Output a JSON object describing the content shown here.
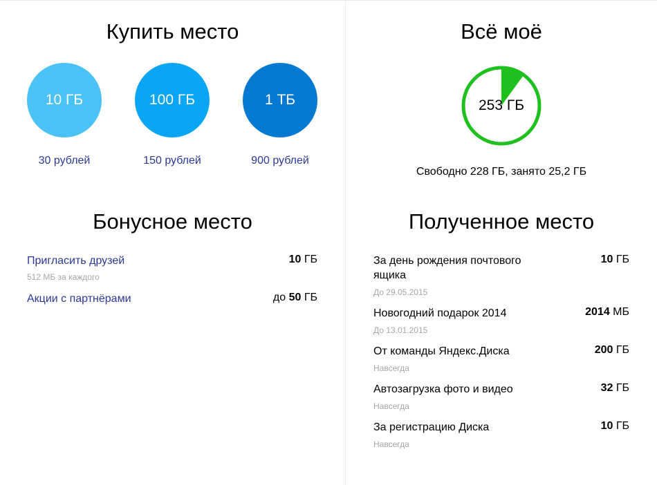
{
  "buy": {
    "title": "Купить место",
    "options": [
      {
        "size": "10 ГБ",
        "price": "30 рублей",
        "color": "#4ac2f5"
      },
      {
        "size": "100 ГБ",
        "price": "150 рублей",
        "color": "#08a6f4"
      },
      {
        "size": "1 ТБ",
        "price": "900 рублей",
        "color": "#0379d2"
      }
    ]
  },
  "all": {
    "title": "Всё моё",
    "total": "253 ГБ",
    "used_fraction": 0.1,
    "ring_color": "#1ec01e",
    "summary": "Свободно 228 ГБ, занято 25,2 ГБ"
  },
  "bonus": {
    "title": "Бонусное место",
    "items": [
      {
        "label": "Пригласить друзей",
        "sub": "512 МБ за каждого",
        "prefix": "",
        "amount": "10",
        "unit": " ГБ"
      },
      {
        "label": "Акции с партнёрами",
        "sub": "",
        "prefix": "до ",
        "amount": "50",
        "unit": " ГБ"
      }
    ]
  },
  "received": {
    "title": "Полученное место",
    "items": [
      {
        "label_line1": "За день рождения почтового",
        "label_line2": "ящика",
        "sub": "До 29.05.2015",
        "amount": "10",
        "unit": " ГБ"
      },
      {
        "label_line1": "Новогодний подарок 2014",
        "label_line2": "",
        "sub": "До 13.01.2015",
        "amount": "2014",
        "unit": " МБ"
      },
      {
        "label_line1": "От команды Яндекс.Диска",
        "label_line2": "",
        "sub": "Навсегда",
        "amount": "200",
        "unit": " ГБ"
      },
      {
        "label_line1": "Автозагрузка фото и видео",
        "label_line2": "",
        "sub": "Навсегда",
        "amount": "32",
        "unit": " ГБ"
      },
      {
        "label_line1": "За регистрацию Диска",
        "label_line2": "",
        "sub": "Навсегда",
        "amount": "10",
        "unit": " ГБ"
      }
    ]
  }
}
